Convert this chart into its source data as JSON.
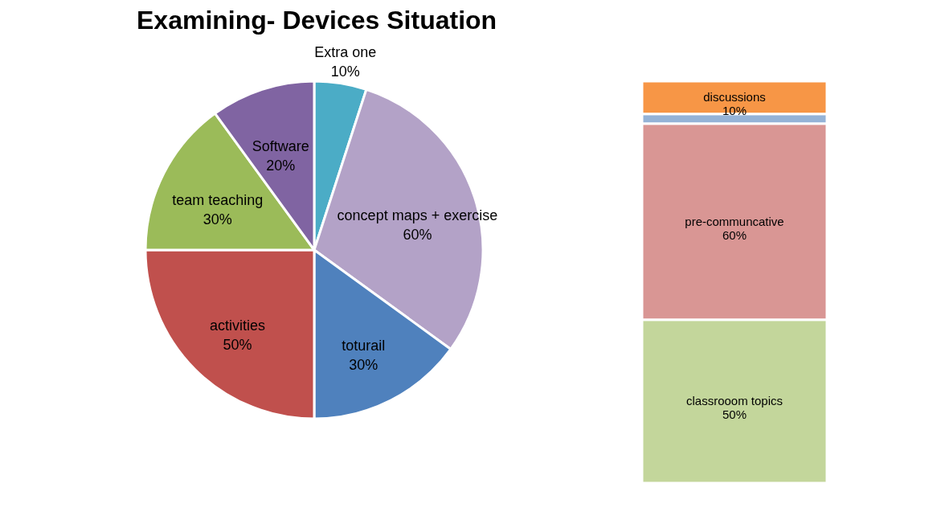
{
  "chart_data": [
    {
      "type": "pie",
      "title": "Examining- Devices Situation",
      "categories": [
        "Extra one",
        "concept maps + exercise",
        "toturail",
        "activities",
        "team teaching",
        "Software"
      ],
      "values": [
        10,
        60,
        30,
        50,
        30,
        20
      ],
      "value_labels": [
        "10%",
        "60%",
        "30%",
        "50%",
        "30%",
        "20%"
      ],
      "colors": [
        "#4bacc6",
        "#b3a2c7",
        "#4f81bd",
        "#c0504d",
        "#9bbb59",
        "#8064a2"
      ],
      "legend": false
    },
    {
      "type": "bar",
      "stacked": true,
      "categories": [
        null
      ],
      "legend": false,
      "series": [
        {
          "name": "classrooom topics",
          "color": "#c3d69b",
          "values": [
            50
          ],
          "value_labels": [
            "50%"
          ]
        },
        {
          "name": "pre-communcative",
          "color": "#d99694",
          "values": [
            60
          ],
          "value_labels": [
            "60%"
          ]
        },
        {
          "color": "#95b3d7",
          "values": [
            3
          ],
          "value_labels": [
            null
          ]
        },
        {
          "name": "discussions",
          "color": "#f79646",
          "values": [
            10
          ],
          "value_labels": [
            "10%"
          ]
        }
      ]
    }
  ]
}
